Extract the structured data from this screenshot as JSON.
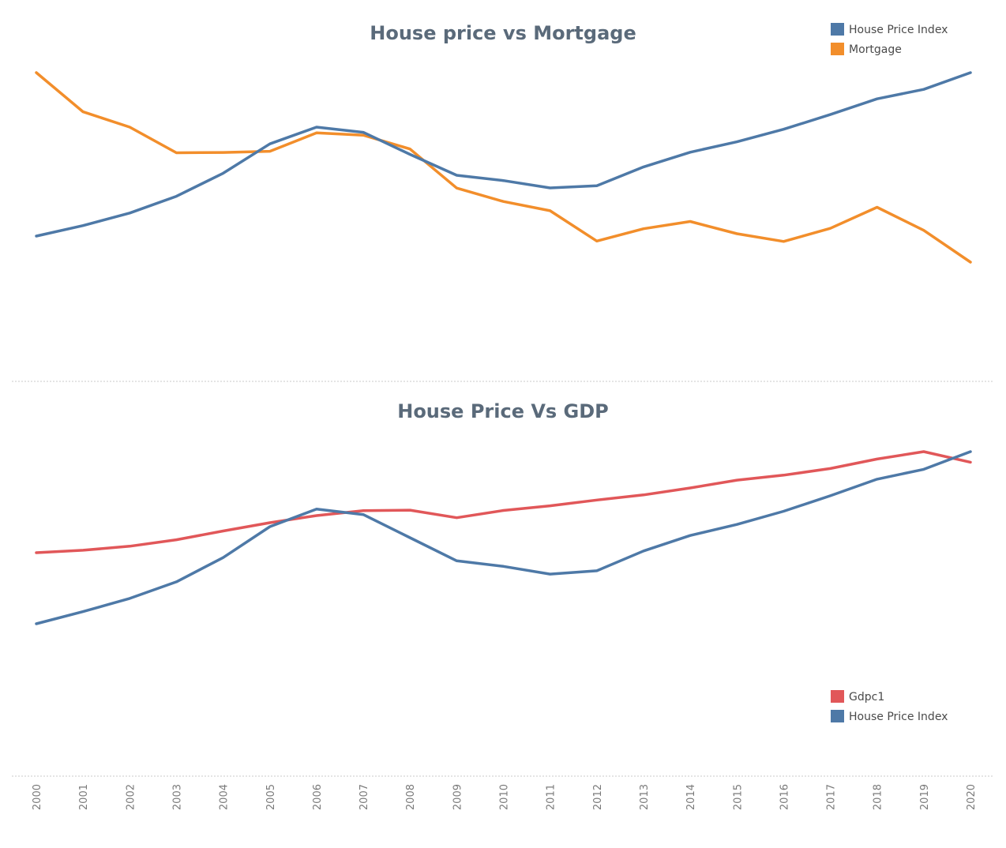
{
  "chart_data": [
    {
      "type": "line",
      "title": "House price vs Mortgage",
      "xlabel": "",
      "ylabel": "",
      "legend_position": "top-right",
      "grid": false,
      "x": [
        "2000",
        "2001",
        "2002",
        "2003",
        "2004",
        "2005",
        "2006",
        "2007",
        "2008",
        "2009",
        "2010",
        "2011",
        "2012",
        "2013",
        "2014",
        "2015",
        "2016",
        "2017",
        "2018",
        "2019",
        "2020"
      ],
      "series": [
        {
          "name": "House Price Index",
          "color": "#4e79a7",
          "values": [
            100,
            105,
            111,
            119,
            130,
            144,
            152,
            149.5,
            139,
            129,
            126.5,
            123,
            124,
            133,
            140,
            145,
            151,
            158,
            165.5,
            170,
            178
          ]
        },
        {
          "name": "Mortgage",
          "color": "#f28e2b",
          "values": [
            8.05,
            7.03,
            6.63,
            5.96,
            5.97,
            6.0,
            6.48,
            6.42,
            6.06,
            5.04,
            4.69,
            4.45,
            3.66,
            3.98,
            4.17,
            3.85,
            3.65,
            3.99,
            4.54,
            3.94,
            3.11
          ]
        }
      ]
    },
    {
      "type": "line",
      "title": "House Price Vs GDP",
      "xlabel": "",
      "ylabel": "",
      "legend_position": "bottom-right",
      "grid": false,
      "x": [
        "2000",
        "2001",
        "2002",
        "2003",
        "2004",
        "2005",
        "2006",
        "2007",
        "2008",
        "2009",
        "2010",
        "2011",
        "2012",
        "2013",
        "2014",
        "2015",
        "2016",
        "2017",
        "2018",
        "2019",
        "2020"
      ],
      "series": [
        {
          "name": "Gdpc1",
          "color": "#e15759",
          "values": [
            13.1,
            13.25,
            13.49,
            13.88,
            14.41,
            14.91,
            15.34,
            15.64,
            15.67,
            15.21,
            15.65,
            15.93,
            16.28,
            16.59,
            17.01,
            17.48,
            17.78,
            18.18,
            18.75,
            19.2,
            18.56
          ]
        },
        {
          "name": "House Price Index",
          "color": "#4e79a7",
          "values": [
            100,
            105.5,
            111.5,
            119,
            130,
            144,
            152,
            149.5,
            139,
            128.5,
            126,
            122.5,
            124,
            133,
            140,
            145,
            151,
            158,
            165.5,
            170,
            178
          ]
        }
      ]
    }
  ]
}
